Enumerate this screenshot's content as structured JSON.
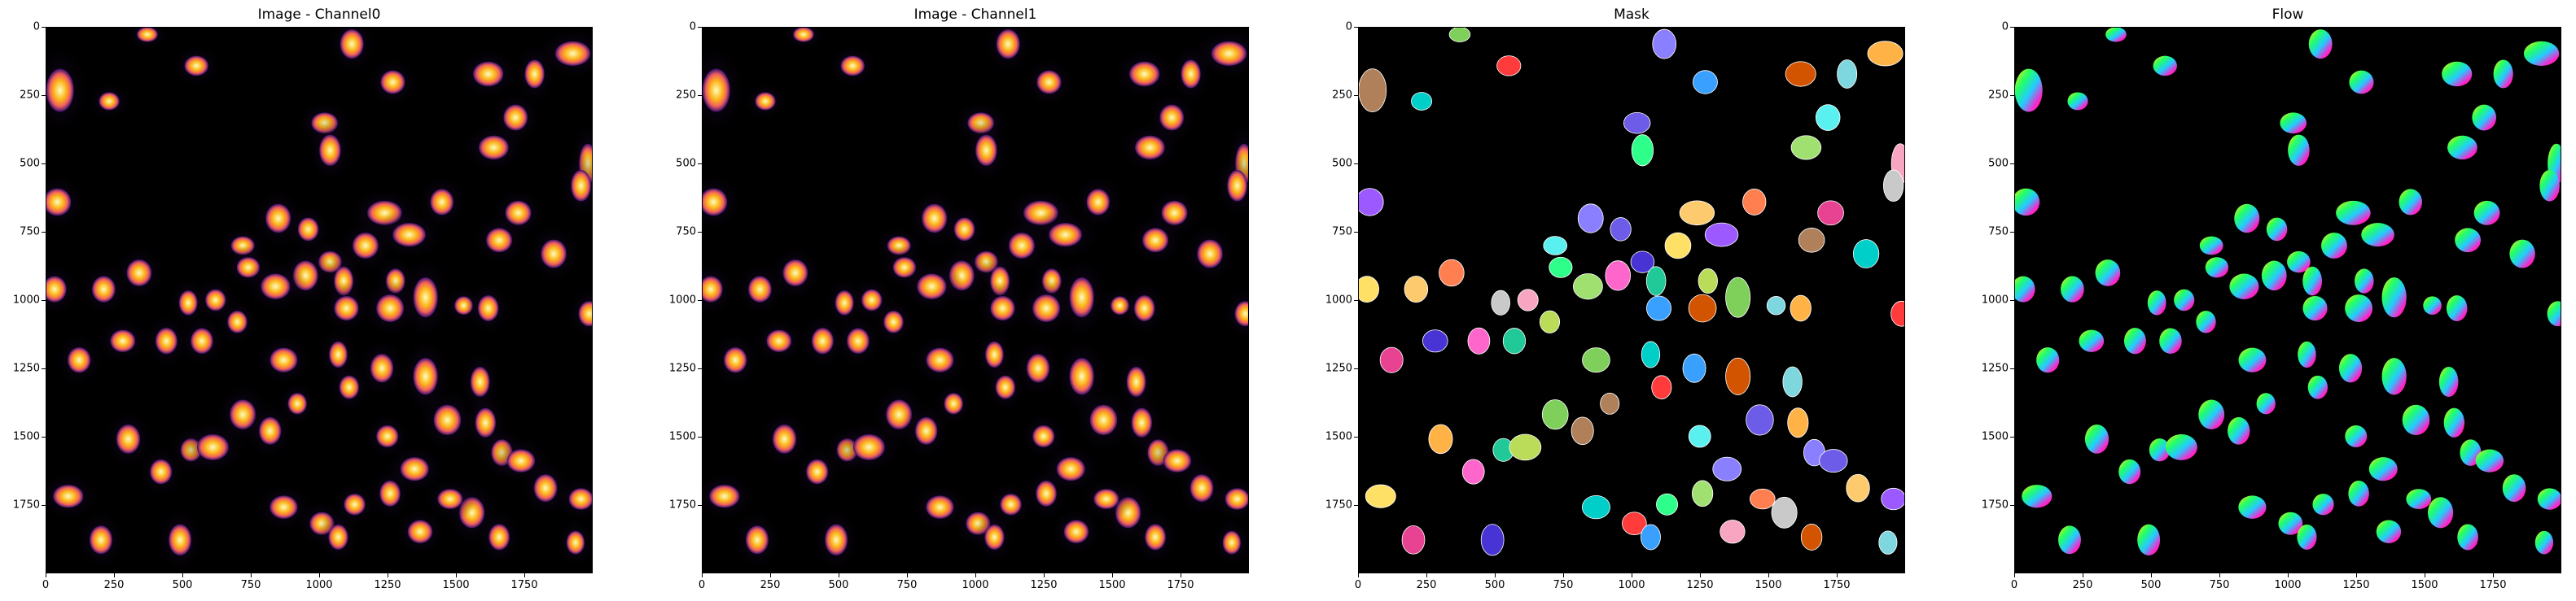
{
  "figure": {
    "panels": [
      {
        "title": "Image - Channel0",
        "kind": "heat"
      },
      {
        "title": "Image - Channel1",
        "kind": "heat"
      },
      {
        "title": "Mask",
        "kind": "mask"
      },
      {
        "title": "Flow",
        "kind": "flow"
      }
    ],
    "x_ticks": [
      "0",
      "250",
      "500",
      "750",
      "1000",
      "1250",
      "1500",
      "1750"
    ],
    "y_ticks": [
      "0",
      "250",
      "500",
      "750",
      "1000",
      "1250",
      "1500",
      "1750"
    ],
    "image_extent": [
      0,
      2000
    ],
    "colors": {
      "background": "#000000",
      "heat_low": "#3b0f70",
      "heat_mid": "#f1605d",
      "heat_high": "#fcfdbf"
    }
  },
  "chart_data": {
    "type": "other",
    "panels": [
      "Image - Channel0",
      "Image - Channel1",
      "Mask",
      "Flow"
    ],
    "x_range": [
      0,
      2000
    ],
    "y_range": [
      2000,
      0
    ],
    "x_ticks": [
      0,
      250,
      500,
      750,
      1000,
      1250,
      1500,
      1750
    ],
    "y_ticks": [
      0,
      250,
      500,
      750,
      1000,
      1250,
      1500,
      1750
    ]
  }
}
